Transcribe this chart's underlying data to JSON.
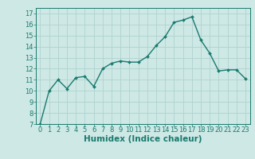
{
  "x": [
    0,
    1,
    2,
    3,
    4,
    5,
    6,
    7,
    8,
    9,
    10,
    11,
    12,
    13,
    14,
    15,
    16,
    17,
    18,
    19,
    20,
    21,
    22,
    23
  ],
  "y": [
    7,
    10,
    11,
    10.2,
    11.2,
    11.3,
    10.4,
    12,
    12.5,
    12.7,
    12.6,
    12.6,
    13.1,
    14.1,
    14.9,
    16.2,
    16.4,
    16.7,
    14.6,
    13.4,
    11.8,
    11.9,
    11.9,
    11.1
  ],
  "line_color": "#1a7a6e",
  "marker": "D",
  "marker_size": 2.0,
  "line_width": 1.0,
  "bg_color": "#cde8e5",
  "grid_color": "#aacfcc",
  "xlabel": "Humidex (Indice chaleur)",
  "xlim": [
    -0.5,
    23.5
  ],
  "ylim": [
    7,
    17.5
  ],
  "yticks": [
    7,
    8,
    9,
    10,
    11,
    12,
    13,
    14,
    15,
    16,
    17
  ],
  "xticks": [
    0,
    1,
    2,
    3,
    4,
    5,
    6,
    7,
    8,
    9,
    10,
    11,
    12,
    13,
    14,
    15,
    16,
    17,
    18,
    19,
    20,
    21,
    22,
    23
  ],
  "tick_label_size": 6.0,
  "xlabel_size": 7.5,
  "text_color": "#1a7a6e",
  "spine_color": "#1a7a6e"
}
